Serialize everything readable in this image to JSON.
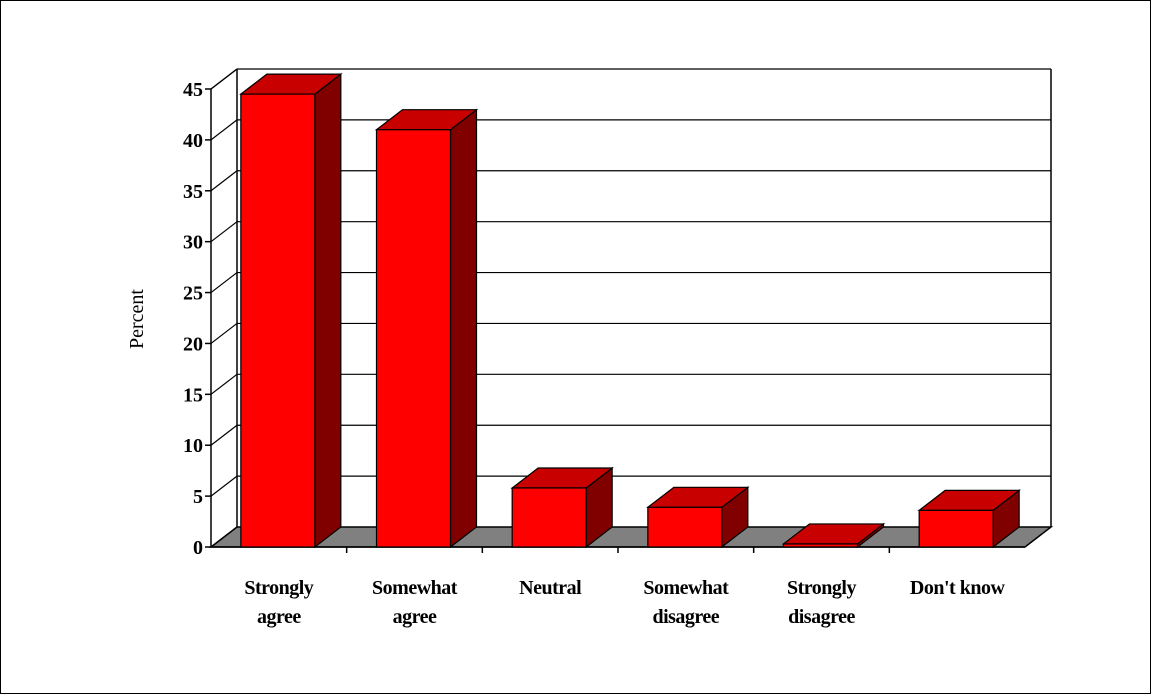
{
  "chart_data": {
    "type": "bar",
    "categories": [
      [
        "Strongly",
        "agree"
      ],
      [
        "Somewhat",
        "agree"
      ],
      [
        "Neutral"
      ],
      [
        "Somewhat",
        "disagree"
      ],
      [
        "Strongly",
        "disagree"
      ],
      [
        "Don't know"
      ]
    ],
    "values": [
      44.5,
      41,
      5.8,
      3.9,
      0.3,
      3.6
    ],
    "title": "",
    "xlabel": "",
    "ylabel": "Percent",
    "ylim": [
      0,
      45
    ],
    "yticks": [
      0,
      5,
      10,
      15,
      20,
      25,
      30,
      35,
      40,
      45
    ],
    "grid": true,
    "style": "3d",
    "colors": {
      "bar_front": "#ff0000",
      "bar_top": "#c80000",
      "bar_side": "#800000",
      "floor": "#808080",
      "grid": "#000000"
    }
  }
}
